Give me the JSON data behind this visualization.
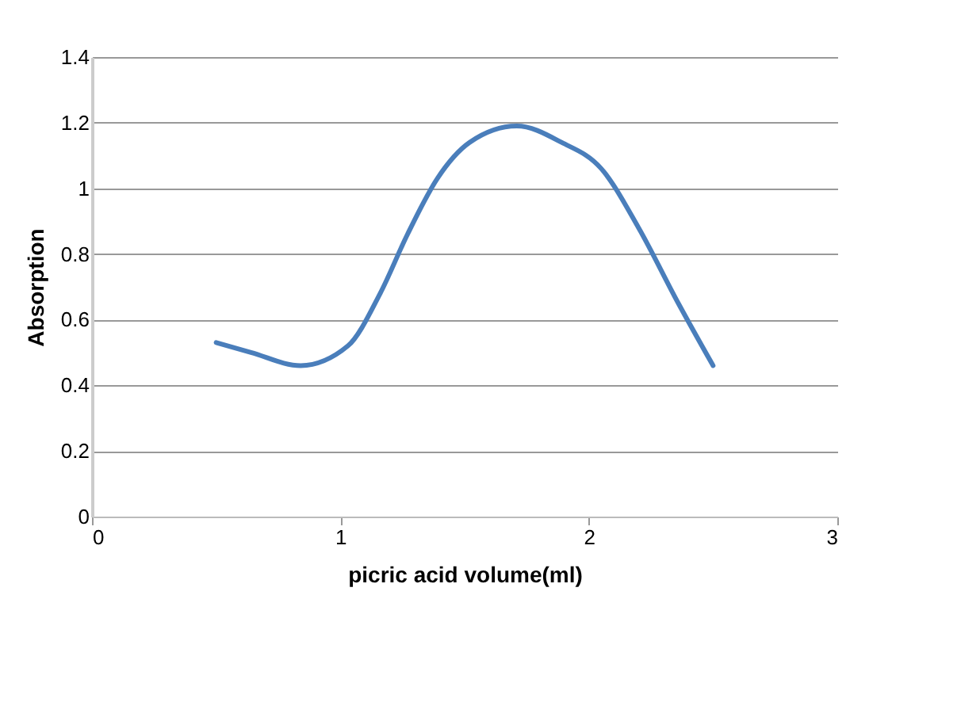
{
  "chart_data": {
    "type": "line",
    "xlabel": "picric acid volume(ml)",
    "ylabel": "Absorption",
    "x": [
      0.5,
      0.64,
      0.84,
      1.03,
      1.16,
      1.27,
      1.39,
      1.52,
      1.71,
      1.89,
      2.05,
      2.2,
      2.36,
      2.5
    ],
    "series": [
      {
        "color": "#4a7ebb",
        "values": [
          0.53,
          0.5,
          0.46,
          0.52,
          0.68,
          0.86,
          1.03,
          1.14,
          1.19,
          1.14,
          1.06,
          0.88,
          0.65,
          0.46
        ]
      }
    ],
    "xlim": [
      0,
      3
    ],
    "xticks": [
      0,
      1,
      2,
      3
    ],
    "ylim": [
      0,
      1.4
    ],
    "yticks": [
      0,
      0.2,
      0.4,
      0.6,
      0.8,
      1,
      1.2,
      1.4
    ],
    "grid": "y",
    "marker": "none",
    "line_style": "solid"
  }
}
